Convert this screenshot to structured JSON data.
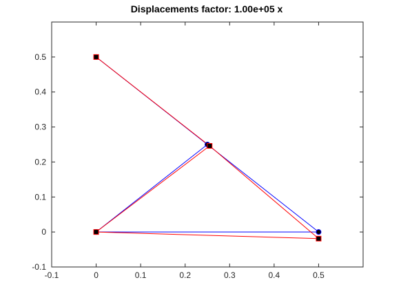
{
  "chart_data": {
    "type": "line",
    "title": "Displacements factor: 1.00e+05 x",
    "xlabel": "",
    "ylabel": "",
    "xlim": [
      -0.1,
      0.6
    ],
    "ylim": [
      -0.1,
      0.6
    ],
    "xticks": [
      -0.1,
      0,
      0.1,
      0.2,
      0.3,
      0.4,
      0.5
    ],
    "xtick_labels": [
      "-0.1",
      "0",
      "0.1",
      "0.2",
      "0.3",
      "0.4",
      "0.5"
    ],
    "yticks": [
      -0.1,
      0,
      0.1,
      0.2,
      0.3,
      0.4,
      0.5
    ],
    "ytick_labels": [
      "-0.1",
      "0",
      "0.1",
      "0.2",
      "0.3",
      "0.4",
      "0.5"
    ],
    "grid": false,
    "series": [
      {
        "color": "#0000ff",
        "marker": "circle",
        "segments": [
          [
            [
              0,
              0.5
            ],
            [
              0.25,
              0.25
            ]
          ],
          [
            [
              0.25,
              0.25
            ],
            [
              0.5,
              0
            ]
          ],
          [
            [
              0,
              0
            ],
            [
              0.25,
              0.25
            ]
          ],
          [
            [
              0,
              0
            ],
            [
              0.5,
              0
            ]
          ]
        ],
        "nodes": [
          [
            0,
            0.5
          ],
          [
            0.25,
            0.25
          ],
          [
            0,
            0
          ],
          [
            0.5,
            0
          ]
        ]
      },
      {
        "color": "#ff0000",
        "marker": "square",
        "segments": [
          [
            [
              0,
              0.5
            ],
            [
              0.255,
              0.246
            ]
          ],
          [
            [
              0.255,
              0.246
            ],
            [
              0.5,
              -0.019
            ]
          ],
          [
            [
              0,
              0
            ],
            [
              0.255,
              0.246
            ]
          ],
          [
            [
              0,
              0
            ],
            [
              0.5,
              -0.019
            ]
          ]
        ],
        "nodes": [
          [
            0,
            0.5
          ],
          [
            0.255,
            0.246
          ],
          [
            0,
            0
          ],
          [
            0.5,
            -0.019
          ]
        ]
      }
    ]
  }
}
